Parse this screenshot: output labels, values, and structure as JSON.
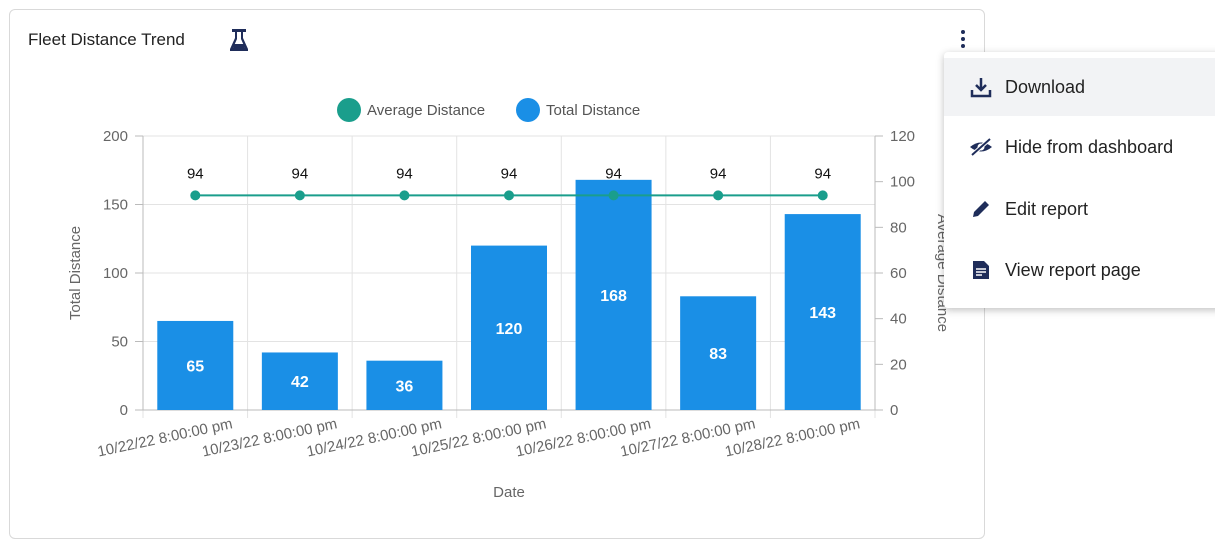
{
  "card": {
    "title": "Fleet Distance Trend"
  },
  "menu": {
    "items": [
      {
        "label": "Download",
        "icon": "download-icon"
      },
      {
        "label": "Hide from dashboard",
        "icon": "eye-off-icon"
      },
      {
        "label": "Edit report",
        "icon": "pencil-icon"
      },
      {
        "label": "View report page",
        "icon": "document-icon"
      }
    ]
  },
  "colors": {
    "bar": "#1a8fe6",
    "line": "#1a9e8c",
    "kebab": "#1f2d5a"
  },
  "chart_data": {
    "type": "bar",
    "categories": [
      "10/22/22 8:00:00 pm",
      "10/23/22 8:00:00 pm",
      "10/24/22 8:00:00 pm",
      "10/25/22 8:00:00 pm",
      "10/26/22 8:00:00 pm",
      "10/27/22 8:00:00 pm",
      "10/28/22 8:00:00 pm"
    ],
    "series": [
      {
        "name": "Total Distance",
        "type": "bar",
        "axis": "left",
        "values": [
          65,
          42,
          36,
          120,
          168,
          83,
          143
        ]
      },
      {
        "name": "Average Distance",
        "type": "line",
        "axis": "right",
        "values": [
          94,
          94,
          94,
          94,
          94,
          94,
          94
        ]
      }
    ],
    "legend": [
      "Average Distance",
      "Total Distance"
    ],
    "legend_position": "top",
    "xlabel": "Date",
    "ylabel": "Total Distance",
    "y2label": "Average Distance",
    "ylim": [
      0,
      200
    ],
    "y2lim": [
      0,
      120
    ],
    "yticks": [
      0,
      50,
      100,
      150,
      200
    ],
    "y2ticks": [
      0,
      20,
      40,
      60,
      80,
      100,
      120
    ],
    "grid": true
  }
}
